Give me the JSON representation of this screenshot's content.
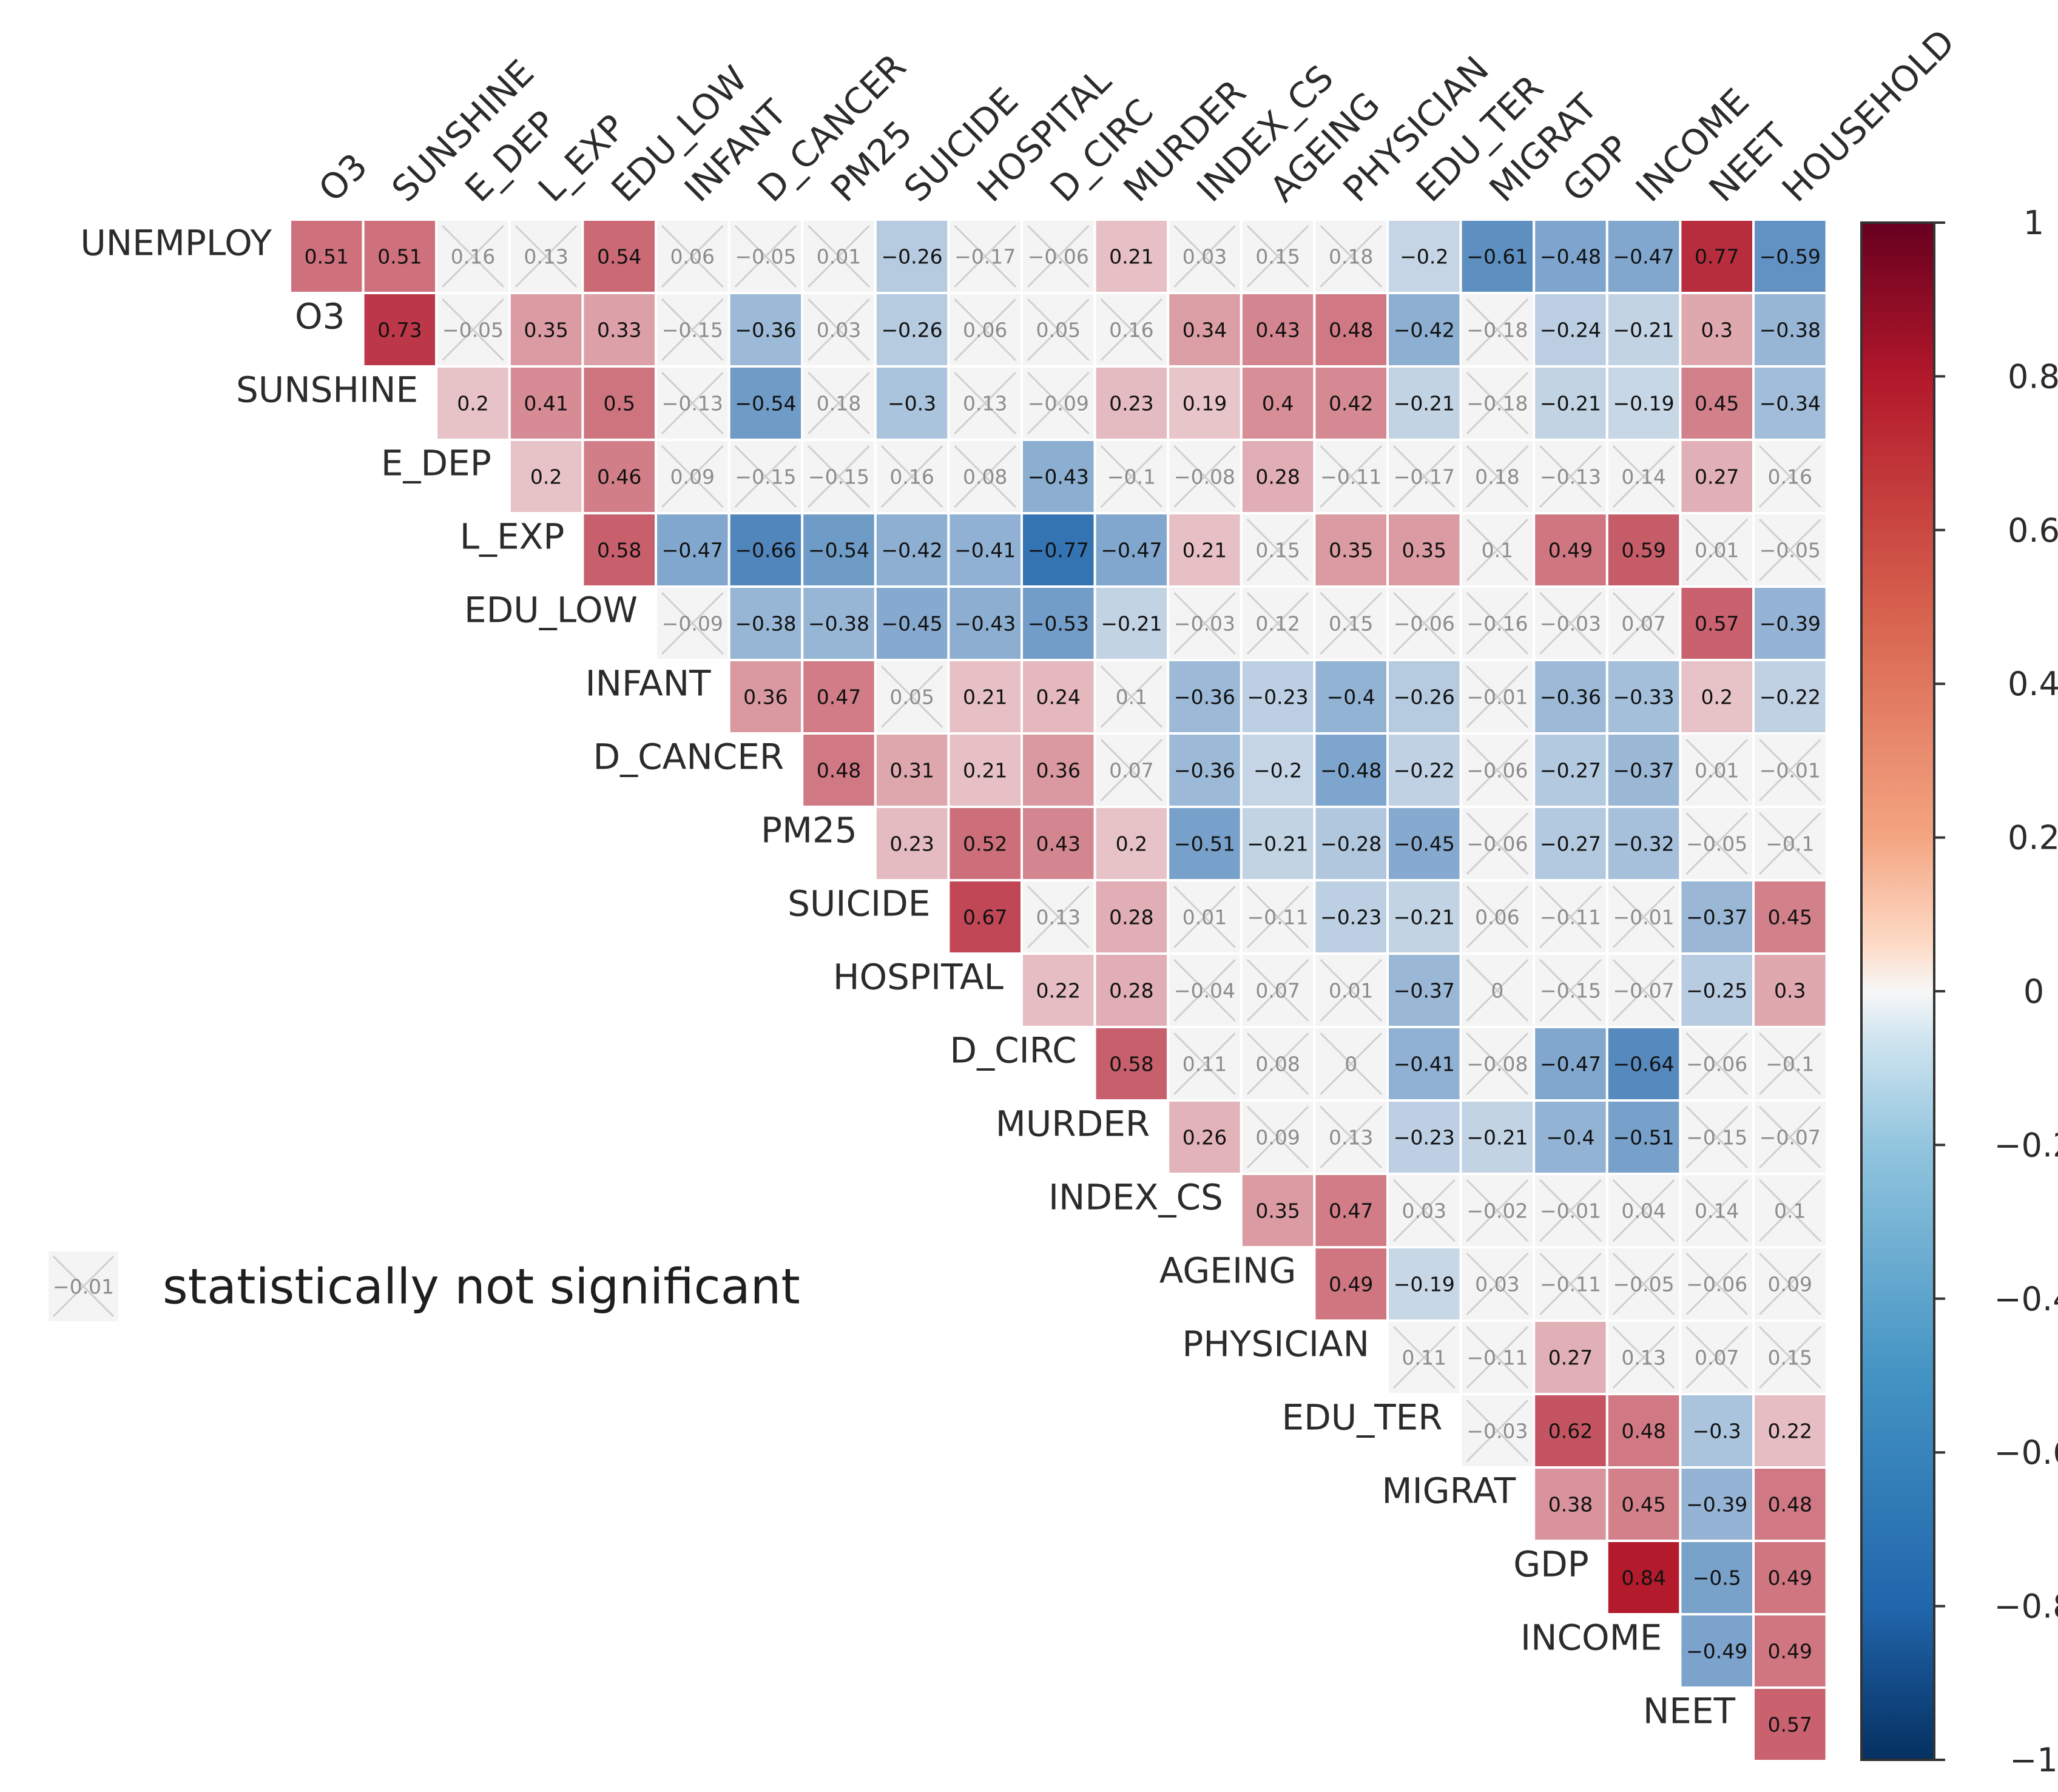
{
  "chart_data": {
    "type": "heatmap",
    "title": "",
    "row_labels": [
      "UNEMPLOY",
      "O3",
      "SUNSHINE",
      "E_DEP",
      "L_EXP",
      "EDU_LOW",
      "INFANT",
      "D_CANCER",
      "PM25",
      "SUICIDE",
      "HOSPITAL",
      "D_CIRC",
      "MURDER",
      "INDEX_CS",
      "AGEING",
      "PHYSICIAN",
      "EDU_TER",
      "MIGRAT",
      "GDP",
      "INCOME",
      "NEET"
    ],
    "col_labels": [
      "O3",
      "SUNSHINE",
      "E_DEP",
      "L_EXP",
      "EDU_LOW",
      "INFANT",
      "D_CANCER",
      "PM25",
      "SUICIDE",
      "HOSPITAL",
      "D_CIRC",
      "MURDER",
      "INDEX_CS",
      "AGEING",
      "PHYSICIAN",
      "EDU_TER",
      "MIGRAT",
      "GDP",
      "INCOME",
      "NEET",
      "HOUSEHOLD"
    ],
    "values": [
      [
        0.51,
        0.51,
        0.16,
        0.13,
        0.54,
        0.06,
        -0.05,
        0.01,
        -0.26,
        -0.17,
        -0.06,
        0.21,
        0.03,
        0.15,
        0.18,
        -0.2,
        -0.61,
        -0.48,
        -0.47,
        0.77,
        -0.59
      ],
      [
        0.73,
        -0.05,
        0.35,
        0.33,
        -0.15,
        -0.36,
        0.03,
        -0.26,
        0.06,
        0.05,
        0.16,
        0.34,
        0.43,
        0.48,
        -0.42,
        -0.18,
        -0.24,
        -0.21,
        0.3,
        -0.38
      ],
      [
        0.2,
        0.41,
        0.5,
        -0.13,
        -0.54,
        0.18,
        -0.3,
        0.13,
        -0.09,
        0.23,
        0.19,
        0.4,
        0.42,
        -0.21,
        -0.18,
        -0.21,
        -0.19,
        0.45,
        -0.34
      ],
      [
        0.2,
        0.46,
        0.09,
        -0.15,
        -0.15,
        0.16,
        0.08,
        -0.43,
        -0.1,
        -0.08,
        0.28,
        -0.11,
        -0.17,
        0.18,
        -0.13,
        0.14,
        0.27,
        0.16
      ],
      [
        0.58,
        -0.47,
        -0.66,
        -0.54,
        -0.42,
        -0.41,
        -0.77,
        -0.47,
        0.21,
        0.15,
        0.35,
        0.35,
        0.1,
        0.49,
        0.59,
        0.01,
        -0.05
      ],
      [
        -0.09,
        -0.38,
        -0.38,
        -0.45,
        -0.43,
        -0.53,
        -0.21,
        -0.03,
        0.12,
        0.15,
        -0.06,
        -0.16,
        -0.03,
        0.07,
        0.57,
        -0.39
      ],
      [
        0.36,
        0.47,
        0.05,
        0.21,
        0.24,
        0.1,
        -0.36,
        -0.23,
        -0.4,
        -0.26,
        -0.01,
        -0.36,
        -0.33,
        0.2,
        -0.22
      ],
      [
        0.48,
        0.31,
        0.21,
        0.36,
        0.07,
        -0.36,
        -0.2,
        -0.48,
        -0.22,
        -0.06,
        -0.27,
        -0.37,
        0.01,
        -0.01
      ],
      [
        0.23,
        0.52,
        0.43,
        0.2,
        -0.51,
        -0.21,
        -0.28,
        -0.45,
        -0.06,
        -0.27,
        -0.32,
        -0.05,
        -0.1
      ],
      [
        0.67,
        0.13,
        0.28,
        0.01,
        -0.11,
        -0.23,
        -0.21,
        0.06,
        -0.11,
        -0.01,
        -0.37,
        0.45
      ],
      [
        0.22,
        0.28,
        -0.04,
        0.07,
        0.01,
        -0.37,
        0,
        -0.15,
        -0.07,
        -0.25,
        0.3
      ],
      [
        0.58,
        0.11,
        0.08,
        0,
        -0.41,
        -0.08,
        -0.47,
        -0.64,
        -0.06,
        -0.1
      ],
      [
        0.26,
        0.09,
        0.13,
        -0.23,
        -0.21,
        -0.4,
        -0.51,
        -0.15,
        -0.07
      ],
      [
        0.35,
        0.47,
        0.03,
        -0.02,
        -0.01,
        0.04,
        0.14,
        0.1
      ],
      [
        0.49,
        -0.19,
        0.03,
        -0.11,
        -0.05,
        -0.06,
        0.09
      ],
      [
        0.11,
        -0.11,
        0.27,
        0.13,
        0.07,
        0.15
      ],
      [
        -0.03,
        0.62,
        0.48,
        -0.3,
        0.22
      ],
      [
        0.38,
        0.45,
        -0.39,
        0.48
      ],
      [
        0.84,
        -0.5,
        0.49
      ],
      [
        -0.49,
        0.49
      ],
      [
        0.57
      ]
    ],
    "not_significant": [
      [
        false,
        false,
        true,
        true,
        false,
        true,
        true,
        true,
        false,
        true,
        true,
        false,
        true,
        true,
        true,
        false,
        false,
        false,
        false,
        false,
        false
      ],
      [
        false,
        true,
        false,
        false,
        true,
        false,
        true,
        false,
        true,
        true,
        true,
        false,
        false,
        false,
        false,
        true,
        false,
        false,
        false,
        false
      ],
      [
        false,
        false,
        false,
        true,
        false,
        true,
        false,
        true,
        true,
        false,
        false,
        false,
        false,
        false,
        true,
        false,
        false,
        false,
        false
      ],
      [
        false,
        false,
        true,
        true,
        true,
        true,
        true,
        false,
        true,
        true,
        false,
        true,
        true,
        true,
        true,
        true,
        false,
        true
      ],
      [
        false,
        false,
        false,
        false,
        false,
        false,
        false,
        false,
        false,
        true,
        false,
        false,
        true,
        false,
        false,
        true,
        true
      ],
      [
        true,
        false,
        false,
        false,
        false,
        false,
        false,
        true,
        true,
        true,
        true,
        true,
        true,
        true,
        false,
        false
      ],
      [
        false,
        false,
        true,
        false,
        false,
        true,
        false,
        false,
        false,
        false,
        true,
        false,
        false,
        false,
        false
      ],
      [
        false,
        false,
        false,
        false,
        true,
        false,
        false,
        false,
        false,
        true,
        false,
        false,
        true,
        true
      ],
      [
        false,
        false,
        false,
        false,
        false,
        false,
        false,
        false,
        true,
        false,
        false,
        true,
        true
      ],
      [
        false,
        true,
        false,
        true,
        true,
        false,
        false,
        true,
        true,
        true,
        false,
        false
      ],
      [
        false,
        false,
        true,
        true,
        true,
        false,
        true,
        true,
        true,
        false,
        false
      ],
      [
        false,
        true,
        true,
        true,
        false,
        true,
        false,
        false,
        true,
        true
      ],
      [
        false,
        true,
        true,
        false,
        false,
        false,
        false,
        true,
        true
      ],
      [
        false,
        false,
        true,
        true,
        true,
        true,
        true,
        true
      ],
      [
        false,
        false,
        true,
        true,
        true,
        true,
        true
      ],
      [
        true,
        true,
        false,
        true,
        true,
        true
      ],
      [
        true,
        false,
        false,
        false,
        false
      ],
      [
        false,
        false,
        false,
        false
      ],
      [
        false,
        false,
        false
      ],
      [
        false,
        false
      ],
      [
        false
      ]
    ],
    "colorbar": {
      "range": [
        -1,
        1
      ],
      "ticks": [
        1,
        0.8,
        0.6,
        0.4,
        0.2,
        0,
        -0.2,
        -0.4,
        -0.6,
        -0.8,
        -1
      ],
      "tick_labels": [
        "1",
        "0.8",
        "0.6",
        "0.4",
        "0.2",
        "0",
        "−0.2",
        "−0.4",
        "−0.6",
        "−0.8",
        "−1"
      ]
    },
    "colors": {
      "positive": "#b2182b",
      "neutral": "#f7f7f7",
      "negative": "#2166ac",
      "insignificant_cell": "#f4f4f4",
      "cross": "#cfcfcf",
      "cell_border": "#ffffff"
    },
    "legend": {
      "sample_value": "−0.01",
      "label": "statistically not significant"
    }
  }
}
